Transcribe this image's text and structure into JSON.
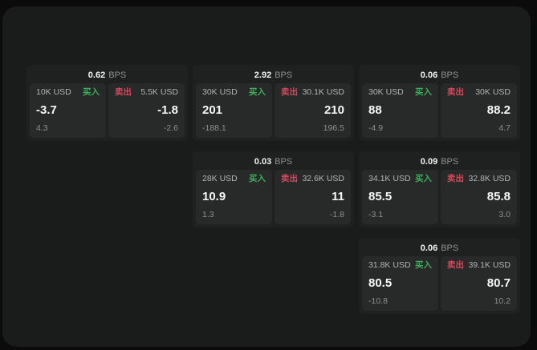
{
  "labels": {
    "bps_unit": "BPS",
    "buy": "买入",
    "sell": "卖出"
  },
  "colors": {
    "buy_green": "#3fae5c",
    "sell_red": "#d14b5c",
    "panel_bg": "#1a1b1b",
    "card_bg": "#1f2020",
    "tile_bg": "#282929"
  },
  "cards": [
    {
      "bps": "0.62",
      "buy": {
        "amount": "10K USD",
        "value": "-3.7",
        "delta": "4.3"
      },
      "sell": {
        "amount": "5.5K USD",
        "value": "-1.8",
        "delta": "-2.6"
      }
    },
    {
      "bps": "2.92",
      "buy": {
        "amount": "30K USD",
        "value": "201",
        "delta": "-188.1"
      },
      "sell": {
        "amount": "30.1K USD",
        "value": "210",
        "delta": "196.5"
      }
    },
    {
      "bps": "0.06",
      "buy": {
        "amount": "30K USD",
        "value": "88",
        "delta": "-4.9"
      },
      "sell": {
        "amount": "30K USD",
        "value": "88.2",
        "delta": "4.7"
      }
    },
    {
      "bps": "0.03",
      "buy": {
        "amount": "28K USD",
        "value": "10.9",
        "delta": "1.3"
      },
      "sell": {
        "amount": "32.6K USD",
        "value": "11",
        "delta": "-1.8"
      }
    },
    {
      "bps": "0.09",
      "buy": {
        "amount": "34.1K USD",
        "value": "85.5",
        "delta": "-3.1"
      },
      "sell": {
        "amount": "32.8K USD",
        "value": "85.8",
        "delta": "3.0"
      }
    },
    {
      "bps": "0.06",
      "buy": {
        "amount": "31.8K USD",
        "value": "80.5",
        "delta": "-10.8"
      },
      "sell": {
        "amount": "39.1K USD",
        "value": "80.7",
        "delta": "10.2"
      }
    }
  ]
}
